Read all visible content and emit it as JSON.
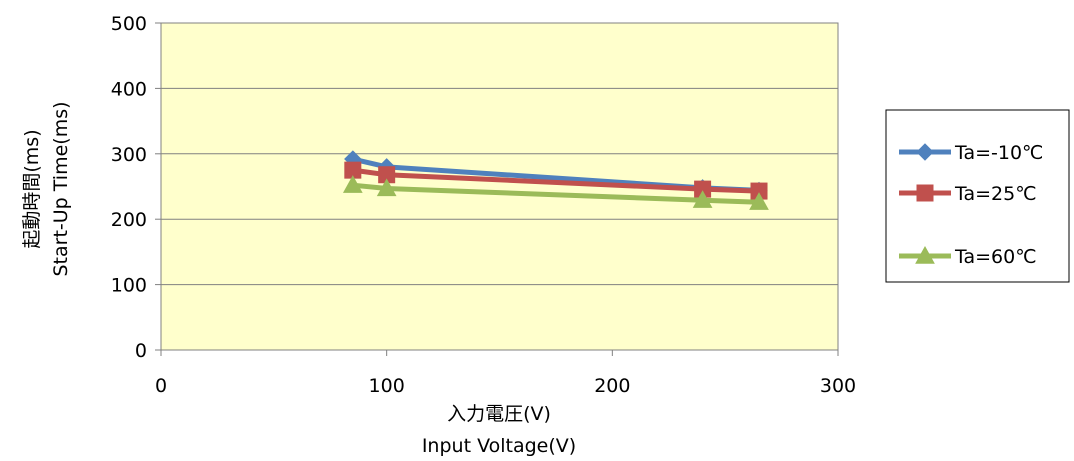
{
  "chart_data": {
    "type": "line",
    "x": [
      85,
      100,
      240,
      265
    ],
    "series": [
      {
        "name": "Ta=-10℃",
        "color": "#4F81BD",
        "marker": "diamond",
        "values": [
          292,
          280,
          248,
          244
        ]
      },
      {
        "name": "Ta=25℃",
        "color": "#C0504D",
        "marker": "square",
        "values": [
          275,
          268,
          246,
          243
        ]
      },
      {
        "name": "Ta=60℃",
        "color": "#9BBB59",
        "marker": "triangle",
        "values": [
          252,
          247,
          229,
          226
        ]
      }
    ],
    "xlabel_lines": [
      "入力電圧(V)",
      "Input Voltage(V)"
    ],
    "ylabel_lines": [
      "起動時間(ms)",
      "Start-Up Time(ms)"
    ],
    "xlim": [
      0,
      300
    ],
    "ylim": [
      0,
      500
    ],
    "x_ticks": [
      0,
      100,
      200,
      300
    ],
    "y_ticks": [
      0,
      100,
      200,
      300,
      400,
      500
    ],
    "grid": "horizontal",
    "legend_position": "right",
    "plot_background": "#FFFFCC"
  }
}
